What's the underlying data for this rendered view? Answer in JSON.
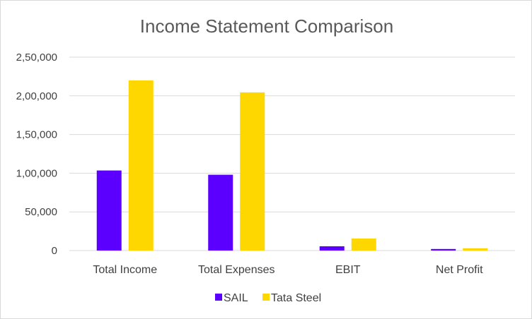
{
  "chart_data": {
    "type": "bar",
    "title": "Income Statement Comparison",
    "xlabel": "",
    "ylabel": "",
    "categories": [
      "Total Income",
      "Total Expenses",
      "EBIT",
      "Net Profit"
    ],
    "series": [
      {
        "name": "SAIL",
        "color": "#5B00FF",
        "values": [
          103500,
          98000,
          5500,
          2000
        ]
      },
      {
        "name": "Tata Steel",
        "color": "#FFD700",
        "values": [
          220000,
          204500,
          15500,
          3000
        ]
      }
    ],
    "ylim": [
      0,
      250000
    ],
    "yticks": [
      0,
      50000,
      100000,
      150000,
      200000,
      250000
    ],
    "ytick_labels": [
      "0",
      "50,000",
      "1,00,000",
      "1,50,000",
      "2,00,000",
      "2,50,000"
    ],
    "grid": true,
    "legend_position": "bottom"
  }
}
